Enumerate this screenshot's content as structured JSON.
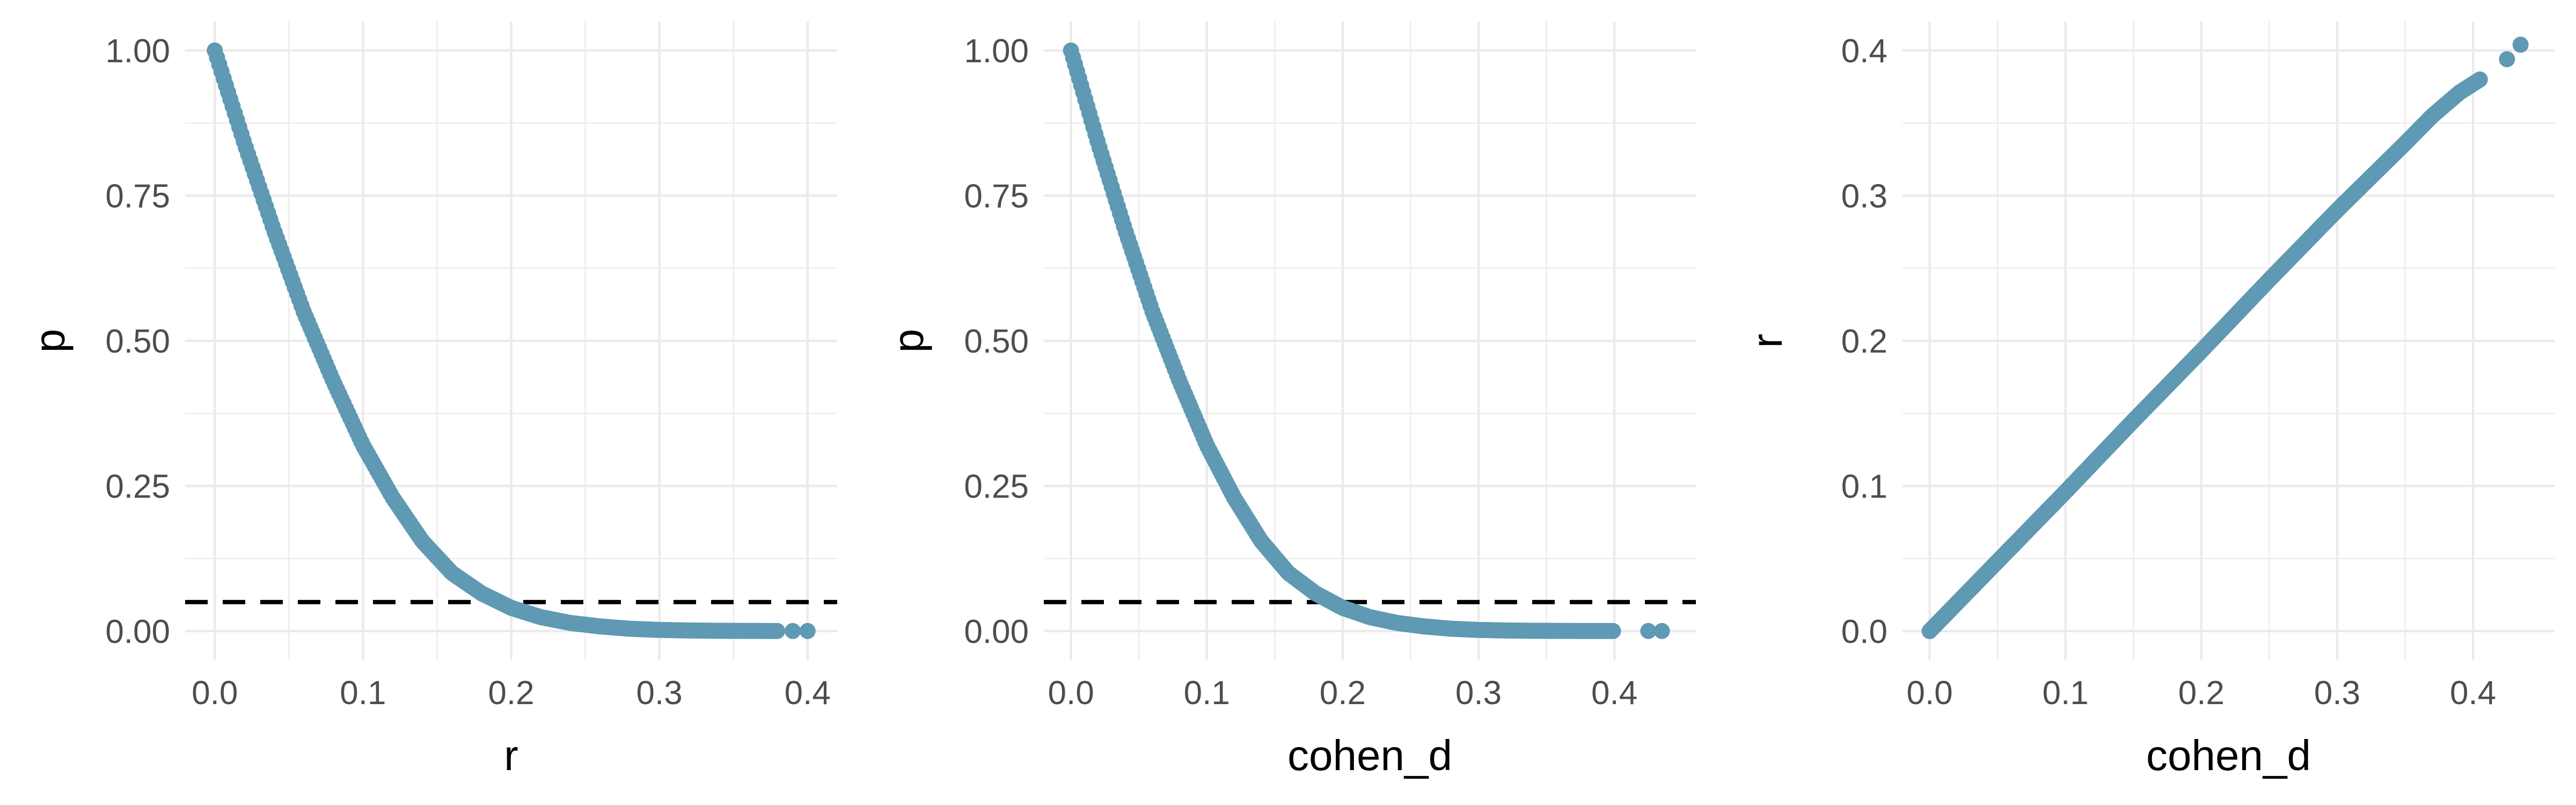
{
  "colors": {
    "point": "#5f99b3",
    "reference_line": "#000000",
    "grid": "#ebebeb",
    "tick_text": "#4d4d4d"
  },
  "chart_data": [
    {
      "type": "scatter",
      "xlabel": "r",
      "ylabel": "p",
      "xlim": [
        -0.02,
        0.42
      ],
      "ylim": [
        -0.05,
        1.05
      ],
      "x_ticks": [
        0.0,
        0.1,
        0.2,
        0.3,
        0.4
      ],
      "x_tick_labels": [
        "0.0",
        "0.1",
        "0.2",
        "0.3",
        "0.4"
      ],
      "y_ticks": [
        0.0,
        0.25,
        0.5,
        0.75,
        1.0
      ],
      "y_tick_labels": [
        "0.00",
        "0.25",
        "0.50",
        "0.75",
        "1.00"
      ],
      "hline": 0.05,
      "grid": true,
      "series": [
        {
          "x": [
            0.0,
            0.02,
            0.04,
            0.06,
            0.08,
            0.1,
            0.12,
            0.14,
            0.16,
            0.18,
            0.2,
            0.22,
            0.24,
            0.26,
            0.28,
            0.3,
            0.32,
            0.34,
            0.36,
            0.38,
            0.39,
            0.4
          ],
          "y": [
            1.0,
            0.84,
            0.69,
            0.55,
            0.43,
            0.32,
            0.23,
            0.155,
            0.1,
            0.065,
            0.04,
            0.024,
            0.014,
            0.008,
            0.004,
            0.002,
            0.001,
            0.0005,
            0.0003,
            0.0001,
            0.0001,
            0.0001
          ]
        }
      ]
    },
    {
      "type": "scatter",
      "xlabel": "cohen_d",
      "ylabel": "p",
      "xlim": [
        -0.02,
        0.46
      ],
      "ylim": [
        -0.05,
        1.05
      ],
      "x_ticks": [
        0.0,
        0.1,
        0.2,
        0.3,
        0.4
      ],
      "x_tick_labels": [
        "0.0",
        "0.1",
        "0.2",
        "0.3",
        "0.4"
      ],
      "y_ticks": [
        0.0,
        0.25,
        0.5,
        0.75,
        1.0
      ],
      "y_tick_labels": [
        "0.00",
        "0.25",
        "0.50",
        "0.75",
        "1.00"
      ],
      "hline": 0.05,
      "grid": true,
      "series": [
        {
          "x": [
            0.0,
            0.02,
            0.04,
            0.06,
            0.08,
            0.1,
            0.12,
            0.14,
            0.16,
            0.18,
            0.2,
            0.22,
            0.24,
            0.26,
            0.28,
            0.3,
            0.32,
            0.34,
            0.36,
            0.38,
            0.4,
            0.425,
            0.435
          ],
          "y": [
            1.0,
            0.84,
            0.69,
            0.55,
            0.43,
            0.32,
            0.23,
            0.155,
            0.1,
            0.065,
            0.04,
            0.024,
            0.014,
            0.008,
            0.004,
            0.002,
            0.001,
            0.0005,
            0.0003,
            0.0001,
            0.0001,
            0.0001,
            0.0001
          ]
        }
      ]
    },
    {
      "type": "scatter",
      "xlabel": "cohen_d",
      "ylabel": "r",
      "xlim": [
        -0.02,
        0.46
      ],
      "ylim": [
        -0.02,
        0.42
      ],
      "x_ticks": [
        0.0,
        0.1,
        0.2,
        0.3,
        0.4
      ],
      "x_tick_labels": [
        "0.0",
        "0.1",
        "0.2",
        "0.3",
        "0.4"
      ],
      "y_ticks": [
        0.0,
        0.1,
        0.2,
        0.3,
        0.4
      ],
      "y_tick_labels": [
        "0.0",
        "0.1",
        "0.2",
        "0.3",
        "0.4"
      ],
      "grid": true,
      "series": [
        {
          "x": [
            0.0,
            0.05,
            0.1,
            0.15,
            0.2,
            0.25,
            0.3,
            0.35,
            0.37,
            0.39,
            0.405,
            0.425,
            0.435
          ],
          "y": [
            0.0,
            0.048,
            0.096,
            0.145,
            0.193,
            0.242,
            0.29,
            0.336,
            0.355,
            0.371,
            0.38,
            0.394,
            0.404
          ]
        }
      ]
    }
  ]
}
